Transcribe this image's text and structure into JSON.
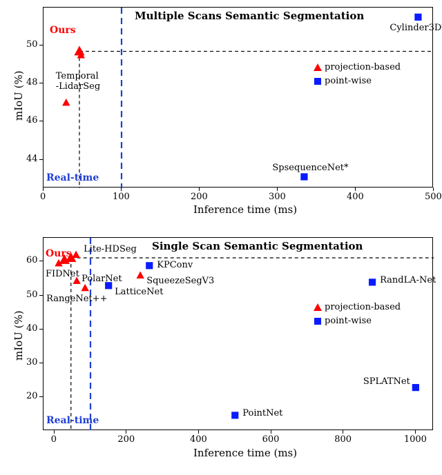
{
  "top_chart": {
    "type": "scatter",
    "title": "Multiple Scans Semantic Segmentation",
    "xlabel": "Inference time (ms)",
    "ylabel": "mIoU (%)",
    "xlim": [
      0,
      500
    ],
    "ylim": [
      42.5,
      52
    ],
    "xtick_step": 100,
    "xticks": [
      0,
      100,
      200,
      300,
      400,
      500
    ],
    "yticks": [
      44,
      46,
      48,
      50
    ],
    "realtime_x": 100,
    "realtime_label": "Real-time",
    "ours_label": "Ours",
    "ours_ref_x": 46,
    "ours_ref_y": 49.7,
    "background_color": "#ffffff",
    "axis_color": "#000000",
    "dash_color_black": "#000000",
    "dash_color_blue": "#1f3fd4",
    "legend": {
      "projection_label": "projection-based",
      "point_label": "point-wise",
      "triangle_color": "#ff0000",
      "square_color": "#0a1cff"
    },
    "series": {
      "projection_based": {
        "marker": "triangle",
        "color": "#ff0000",
        "points": [
          {
            "x": 29,
            "y": 47.0,
            "label": "Temporal\n-LidarSeg",
            "label_dx": -14,
            "label_dy": -44
          },
          {
            "x": 46,
            "y": 49.7,
            "label": "",
            "big": true
          },
          {
            "x": 48,
            "y": 49.5,
            "label": ""
          }
        ]
      },
      "point_wise": {
        "marker": "square",
        "color": "#0a1cff",
        "points": [
          {
            "x": 334,
            "y": 43.1,
            "label": "SpsequenceNet*",
            "label_dx": -45,
            "label_dy": -18
          },
          {
            "x": 480,
            "y": 51.5,
            "label": "Cylinder3D*",
            "label_dx": -40,
            "label_dy": 10
          }
        ]
      }
    }
  },
  "bottom_chart": {
    "type": "scatter",
    "title": "Single Scan Semantic Segmentation",
    "xlabel": "Inference time (ms)",
    "ylabel": "mIoU (%)",
    "xlim": [
      -30,
      1050
    ],
    "ylim": [
      10,
      67
    ],
    "xtick_step": 200,
    "xticks": [
      0,
      200,
      400,
      600,
      800,
      1000
    ],
    "yticks": [
      20,
      30,
      40,
      50,
      60
    ],
    "realtime_x": 100,
    "realtime_label": "Real-time",
    "ours_label": "Ours",
    "ours_ref_x": 46,
    "ours_ref_y": 61.1,
    "background_color": "#ffffff",
    "axis_color": "#000000",
    "dash_color_black": "#000000",
    "dash_color_blue": "#1f3fd4",
    "legend": {
      "projection_label": "projection-based",
      "point_label": "point-wise",
      "triangle_color": "#ff0000",
      "square_color": "#0a1cff"
    },
    "series": {
      "projection_based": {
        "marker": "triangle",
        "color": "#ff0000",
        "points": [
          {
            "x": 12,
            "y": 59.5,
            "label": "FIDNet",
            "label_dx": -18,
            "label_dy": 10
          },
          {
            "x": 28,
            "y": 60.5,
            "label": "",
            "big": true
          },
          {
            "x": 46,
            "y": 61.1,
            "label": "",
            "big": true
          },
          {
            "x": 60,
            "y": 62.0,
            "label": "Lite-HDSeg",
            "label_dx": 12,
            "label_dy": -14
          },
          {
            "x": 62,
            "y": 54.3,
            "label": "PolarNet",
            "label_dx": 8,
            "label_dy": -8
          },
          {
            "x": 85,
            "y": 52.2,
            "label": "RangeNet++",
            "label_dx": -55,
            "label_dy": 10
          },
          {
            "x": 238,
            "y": 55.9,
            "label": "SqueezeSegV3",
            "label_dx": 10,
            "label_dy": 2
          }
        ]
      },
      "point_wise": {
        "marker": "square",
        "color": "#0a1cff",
        "points": [
          {
            "x": 150,
            "y": 52.9,
            "label": "LatticeNet",
            "label_dx": 10,
            "label_dy": 4
          },
          {
            "x": 263,
            "y": 58.8,
            "label": "KPConv",
            "label_dx": 12,
            "label_dy": -6
          },
          {
            "x": 500,
            "y": 14.6,
            "label": "PointNet",
            "label_dx": 12,
            "label_dy": -8
          },
          {
            "x": 880,
            "y": 53.9,
            "label": "RandLA-Net",
            "label_dx": 12,
            "label_dy": -8
          },
          {
            "x": 1000,
            "y": 22.8,
            "label": "SPLATNet",
            "label_dx": -75,
            "label_dy": -14
          }
        ]
      }
    }
  },
  "marker_size_normal": 6,
  "marker_size_big": 8,
  "colors": {
    "red": "#ff0000",
    "blue": "#0a1cff",
    "dash_blue": "#1f3fd4",
    "black": "#000000"
  }
}
